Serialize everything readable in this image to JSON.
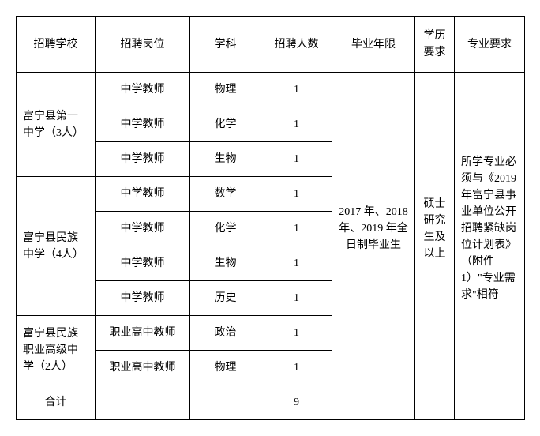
{
  "headers": {
    "school": "招聘学校",
    "position": "招聘岗位",
    "subject": "学科",
    "count": "招聘人数",
    "gradyear": "毕业年限",
    "edu": "学历要求",
    "major": "专业要求"
  },
  "schools": [
    {
      "name": "富宁县第一中学（3人）",
      "rowspan": 3
    },
    {
      "name": "富宁县民族中学（4人）",
      "rowspan": 4
    },
    {
      "name": "富宁县民族职业高级中学（2人）",
      "rowspan": 2
    }
  ],
  "rows": [
    {
      "position": "中学教师",
      "subject": "物理",
      "count": "1"
    },
    {
      "position": "中学教师",
      "subject": "化学",
      "count": "1"
    },
    {
      "position": "中学教师",
      "subject": "生物",
      "count": "1"
    },
    {
      "position": "中学教师",
      "subject": "数学",
      "count": "1"
    },
    {
      "position": "中学教师",
      "subject": "化学",
      "count": "1"
    },
    {
      "position": "中学教师",
      "subject": "生物",
      "count": "1"
    },
    {
      "position": "中学教师",
      "subject": "历史",
      "count": "1"
    },
    {
      "position": "职业高中教师",
      "subject": "政治",
      "count": "1"
    },
    {
      "position": "职业高中教师",
      "subject": "物理",
      "count": "1"
    }
  ],
  "merged": {
    "gradyear": "2017 年、2018 年、2019 年全日制毕业生",
    "edu": "硕士研究生及以上",
    "major": "所学专业必须与《2019年富宁县事业单位公开招聘紧缺岗位计划表》（附件1）\"专业需求\"相符"
  },
  "total": {
    "label": "合计",
    "count": "9"
  },
  "style": {
    "border_color": "#000000",
    "background_color": "#ffffff",
    "font_size": 14,
    "font_family": "SimSun"
  }
}
